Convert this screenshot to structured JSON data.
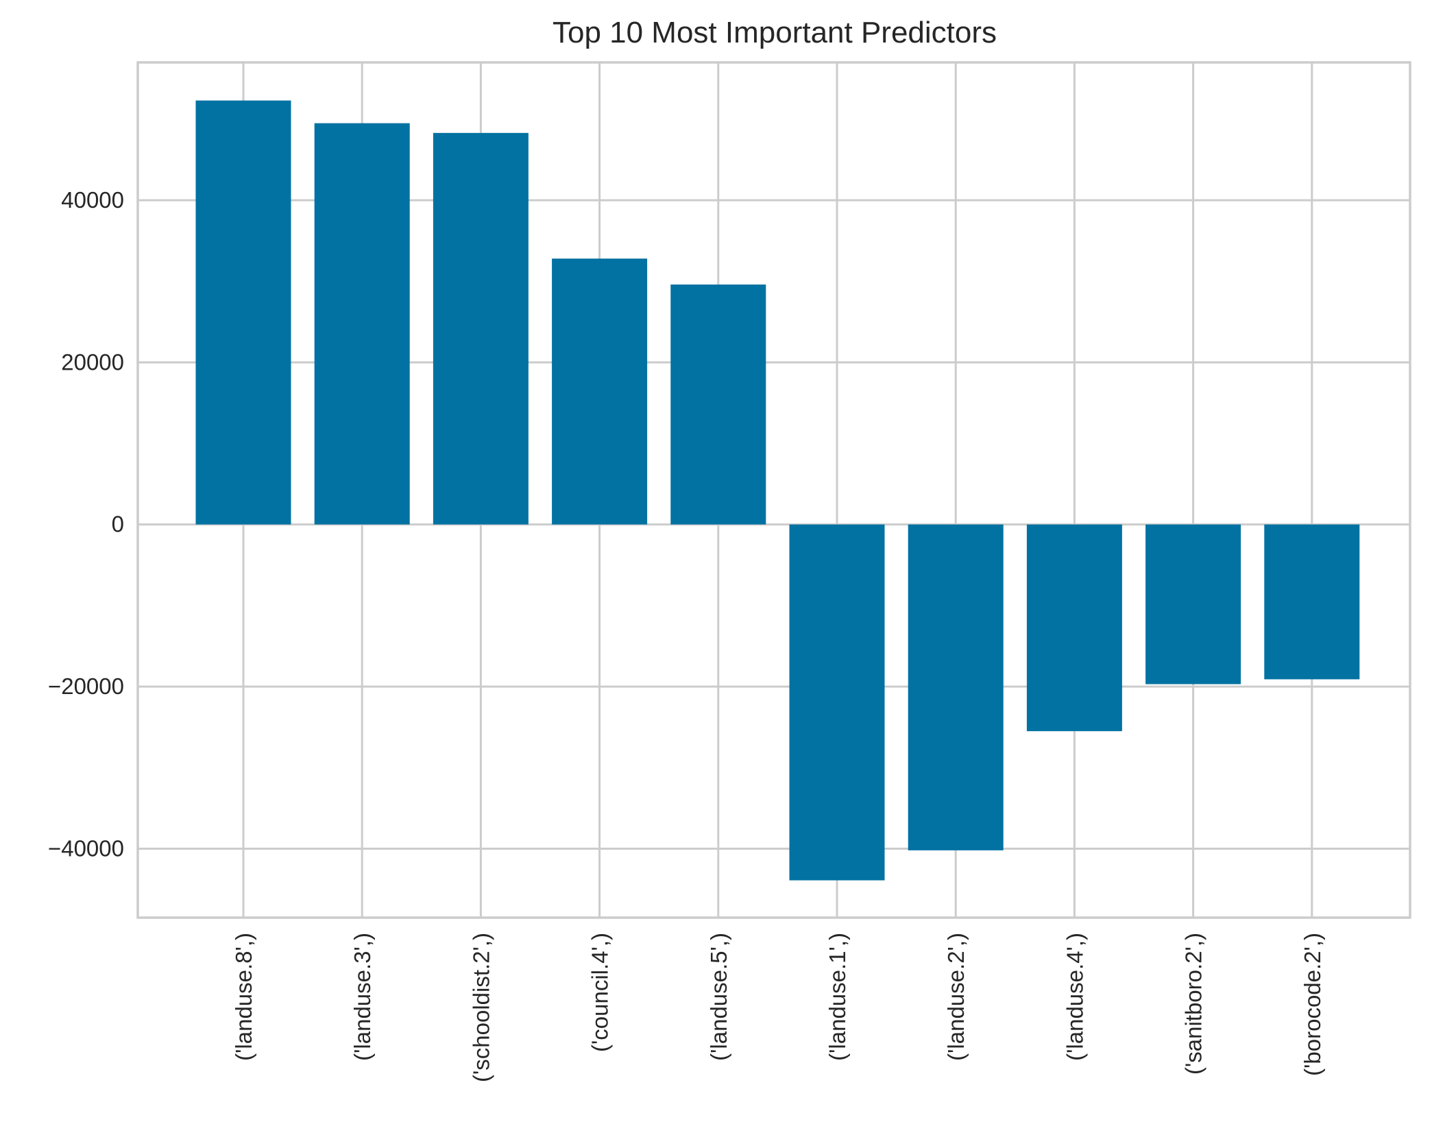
{
  "chart_data": {
    "type": "bar",
    "title": "Top 10 Most Important Predictors",
    "xlabel": "",
    "ylabel": "",
    "categories": [
      "('landuse.8',)",
      "('landuse.3',)",
      "('schooldist.2',)",
      "('council.4',)",
      "('landuse.5',)",
      "('landuse.1',)",
      "('landuse.2',)",
      "('landuse.4',)",
      "('sanitboro.2',)",
      "('borocode.2',)"
    ],
    "values": [
      52300,
      49500,
      48300,
      32800,
      29600,
      -43900,
      -40200,
      -25500,
      -19700,
      -19100
    ],
    "ylim": [
      -48500,
      57000
    ],
    "yticks": [
      -40000,
      -20000,
      0,
      20000,
      40000
    ],
    "ytick_labels": [
      "−40000",
      "−20000",
      "0",
      "20000",
      "40000"
    ],
    "grid": true,
    "colors": {
      "bar": "#0272a2",
      "grid": "#cccccc",
      "text": "#262626",
      "background": "#ffffff"
    }
  }
}
